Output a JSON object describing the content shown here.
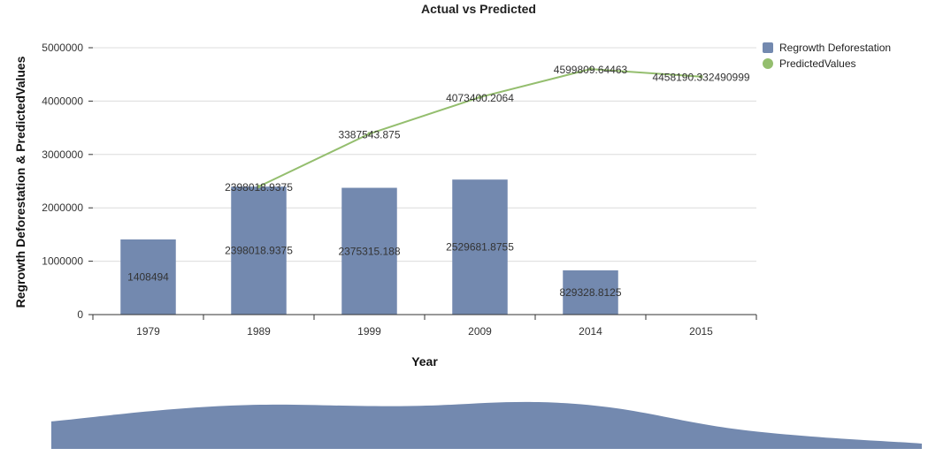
{
  "chart_data": {
    "type": "bar",
    "title": "Actual vs Predicted",
    "xlabel": "Year",
    "ylabel": "Regrowth Deforestation & PredictedValues",
    "categories": [
      "1979",
      "1989",
      "1999",
      "2009",
      "2014",
      "2015"
    ],
    "ylim": [
      0,
      5000000
    ],
    "yticks": [
      0,
      1000000,
      2000000,
      3000000,
      4000000,
      5000000
    ],
    "ytick_labels": [
      "0",
      "1000000",
      "2000000",
      "3000000",
      "4000000",
      "5000000"
    ],
    "grid": true,
    "legend_position": "top-right",
    "series": [
      {
        "name": "Regrowth Deforestation",
        "type": "bar",
        "color": "#7389af",
        "values": [
          1408494,
          2398018.9375,
          2375315.188,
          2529681.8755,
          829328.8125,
          null
        ],
        "labels": [
          "1408494",
          "2398018.9375",
          "2375315.188",
          "2529681.8755",
          "829328.8125",
          ""
        ]
      },
      {
        "name": "PredictedValues",
        "type": "line",
        "color": "#94be6e",
        "values": [
          null,
          2398018.9375,
          3387543.875,
          4073400.2064,
          4599809.64463,
          4458190.332490999
        ],
        "labels": [
          "",
          "2398018.9375",
          "3387543.875",
          "4073400.2064",
          "4599809.64463",
          "4458190.332490999"
        ]
      }
    ],
    "navigator": {
      "color": "#7389af"
    }
  }
}
